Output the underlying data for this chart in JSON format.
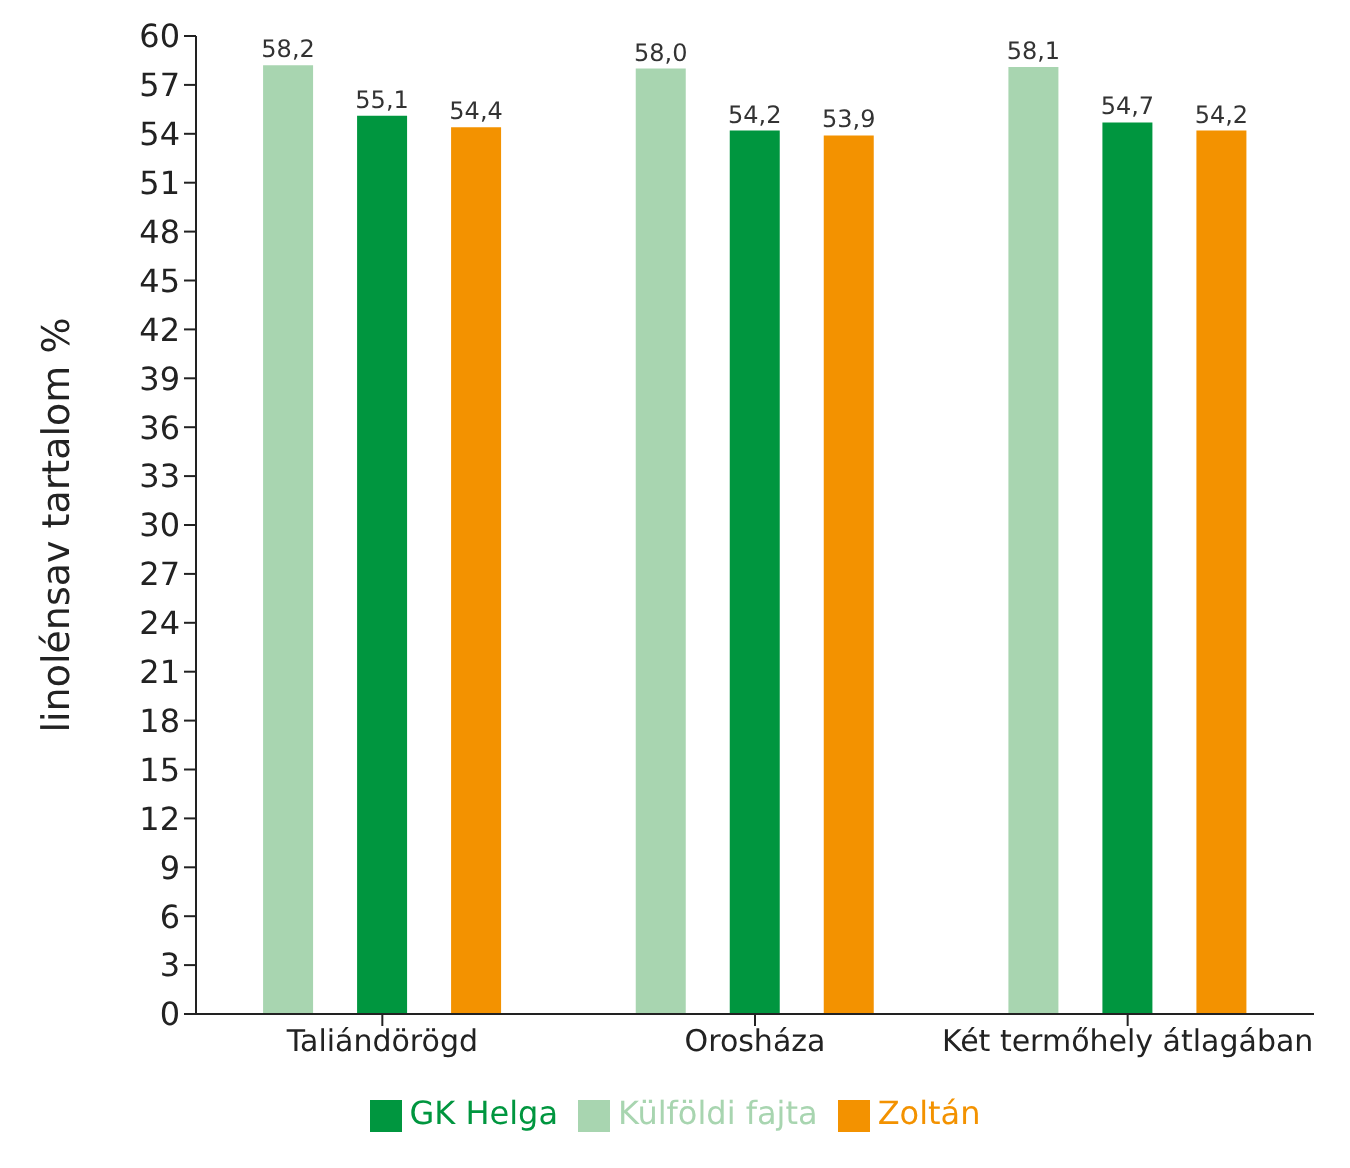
{
  "chart_data": {
    "type": "bar",
    "ylabel": "linolénsav tartalom %",
    "categories": [
      "Taliándörögd",
      "Orosháza",
      "Két termőhely átlagában"
    ],
    "series": [
      {
        "name": "Külföldi fajta",
        "color": "#a8d5b0",
        "values": [
          58.2,
          58.0,
          58.1
        ],
        "value_labels": [
          "58,2",
          "58,0",
          "58,1"
        ]
      },
      {
        "name": "GK Helga",
        "color": "#00963f",
        "values": [
          55.1,
          54.2,
          54.7
        ],
        "value_labels": [
          "55,1",
          "54,2",
          "54,7"
        ]
      },
      {
        "name": "Zoltán",
        "color": "#f39200",
        "values": [
          54.4,
          53.9,
          54.2
        ],
        "value_labels": [
          "54,4",
          "53,9",
          "54,2"
        ]
      }
    ],
    "ylim": [
      0,
      60
    ],
    "yticks": [
      0,
      3,
      6,
      9,
      12,
      15,
      18,
      21,
      24,
      27,
      30,
      33,
      36,
      39,
      42,
      45,
      48,
      51,
      54,
      57,
      60
    ],
    "legend": "bottom",
    "grid": false
  }
}
